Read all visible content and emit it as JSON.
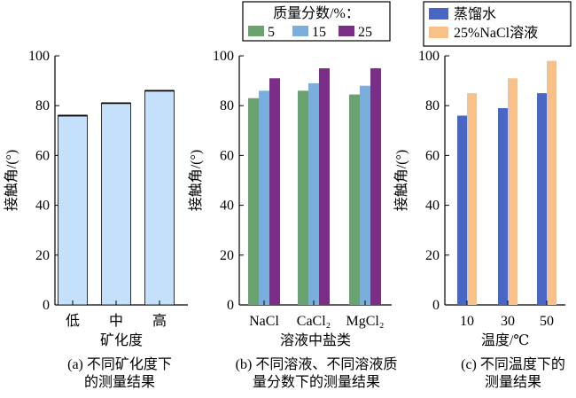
{
  "chart_data": [
    {
      "type": "bar",
      "panel": "a",
      "caption": [
        "(a) 不同矿化度下",
        "的测量结果"
      ],
      "xlabel": "矿化度",
      "ylabel": "接触角/(°)",
      "ylim": [
        0,
        100
      ],
      "yticks": [
        0,
        20,
        40,
        60,
        80,
        100
      ],
      "categories": [
        "低",
        "中",
        "高"
      ],
      "series": [
        {
          "color": "#c5e0fb",
          "values": [
            76,
            81,
            86
          ]
        }
      ],
      "legend": null
    },
    {
      "type": "bar",
      "panel": "b",
      "caption": [
        "(b) 不同溶液、不同溶液质",
        "量分数下的测量结果"
      ],
      "xlabel": "溶液中盐类",
      "ylabel": "接触角/(°)",
      "ylim": [
        0,
        100
      ],
      "yticks": [
        0,
        20,
        40,
        60,
        80,
        100
      ],
      "categories": [
        "NaCl",
        "CaCl₂",
        "MgCl₂"
      ],
      "legend_title": "质量分数/%：",
      "series": [
        {
          "name": "5",
          "color": "#6aa36f",
          "values": [
            83,
            86,
            84.5
          ]
        },
        {
          "name": "15",
          "color": "#7aaedc",
          "values": [
            86,
            89,
            88
          ]
        },
        {
          "name": "25",
          "color": "#7a2e86",
          "values": [
            91,
            95,
            95
          ]
        }
      ],
      "legend": "top"
    },
    {
      "type": "bar",
      "panel": "c",
      "caption": [
        "(c) 不同温度下的",
        "测量结果"
      ],
      "xlabel": "温度/℃",
      "ylabel": "接触角/(°)",
      "ylim": [
        0,
        100
      ],
      "yticks": [
        0,
        20,
        40,
        60,
        80,
        100
      ],
      "categories": [
        "10",
        "30",
        "50"
      ],
      "series": [
        {
          "name": "蒸馏水",
          "color": "#4a66c4",
          "values": [
            76,
            79,
            85
          ]
        },
        {
          "name": "25%NaCl溶液",
          "color": "#f8c188",
          "values": [
            85,
            91,
            98
          ]
        }
      ],
      "legend": "top"
    }
  ]
}
